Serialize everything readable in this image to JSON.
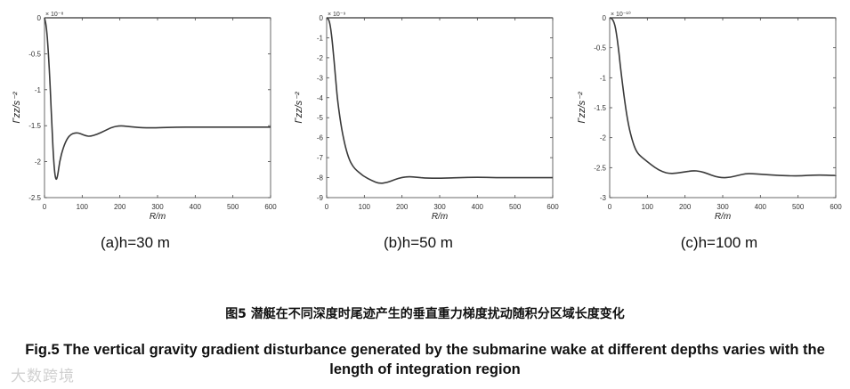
{
  "chart_data": [
    {
      "type": "line",
      "panel_label": "(a)h=30 m",
      "exponent": "× 10⁻⁸",
      "xlabel": "R/m",
      "ylabel": "Γzz/s⁻²",
      "xlim": [
        0,
        600
      ],
      "ylim": [
        -2.5,
        0
      ],
      "xticks": [
        "0",
        "100",
        "200",
        "300",
        "400",
        "500",
        "600"
      ],
      "yticks": [
        "0",
        "-0.5",
        "-1",
        "-1.5",
        "-2",
        "-2.5"
      ],
      "x": [
        0,
        5,
        10,
        15,
        20,
        25,
        30,
        35,
        40,
        50,
        60,
        70,
        80,
        90,
        100,
        110,
        120,
        140,
        160,
        180,
        200,
        220,
        240,
        260,
        280,
        300,
        350,
        400,
        450,
        500,
        550,
        600
      ],
      "y": [
        0,
        -0.12,
        -0.45,
        -0.95,
        -1.55,
        -2.05,
        -2.27,
        -2.2,
        -2.0,
        -1.8,
        -1.68,
        -1.62,
        -1.6,
        -1.6,
        -1.62,
        -1.64,
        -1.65,
        -1.62,
        -1.57,
        -1.52,
        -1.5,
        -1.51,
        -1.52,
        -1.53,
        -1.53,
        -1.53,
        -1.52,
        -1.52,
        -1.52,
        -1.52,
        -1.52,
        -1.52
      ]
    },
    {
      "type": "line",
      "panel_label": "(b)h=50 m",
      "exponent": "× 10⁻⁹",
      "xlabel": "R/m",
      "ylabel": "Γzz/s⁻²",
      "xlim": [
        0,
        600
      ],
      "ylim": [
        -9,
        0
      ],
      "xticks": [
        "0",
        "100",
        "200",
        "300",
        "400",
        "500",
        "600"
      ],
      "yticks": [
        "0",
        "-1",
        "-2",
        "-3",
        "-4",
        "-5",
        "-6",
        "-7",
        "-8",
        "-9"
      ],
      "x": [
        0,
        5,
        10,
        15,
        20,
        25,
        30,
        40,
        50,
        60,
        70,
        80,
        90,
        100,
        120,
        140,
        160,
        180,
        200,
        220,
        240,
        260,
        280,
        300,
        350,
        400,
        450,
        500,
        550,
        600
      ],
      "y": [
        0,
        -0.05,
        -0.4,
        -1.2,
        -2.2,
        -3.3,
        -4.3,
        -5.6,
        -6.5,
        -7.1,
        -7.45,
        -7.65,
        -7.8,
        -7.95,
        -8.15,
        -8.3,
        -8.25,
        -8.1,
        -7.98,
        -7.95,
        -7.98,
        -8.02,
        -8.03,
        -8.03,
        -8.0,
        -7.98,
        -8.0,
        -8.0,
        -8.0,
        -8.0
      ]
    },
    {
      "type": "line",
      "panel_label": "(c)h=100 m",
      "exponent": "× 10⁻¹⁰",
      "xlabel": "R/m",
      "ylabel": "Γzz/s⁻²",
      "xlim": [
        0,
        600
      ],
      "ylim": [
        -3,
        0
      ],
      "xticks": [
        "0",
        "100",
        "200",
        "300",
        "400",
        "500",
        "600"
      ],
      "yticks": [
        "0",
        "-0.5",
        "-1",
        "-1.5",
        "-2",
        "-2.5",
        "-3"
      ],
      "x": [
        0,
        5,
        10,
        15,
        20,
        25,
        30,
        40,
        50,
        60,
        70,
        80,
        100,
        120,
        140,
        160,
        180,
        200,
        220,
        240,
        260,
        280,
        300,
        320,
        340,
        360,
        380,
        400,
        450,
        500,
        550,
        600
      ],
      "y": [
        0,
        -0.01,
        -0.05,
        -0.15,
        -0.35,
        -0.6,
        -0.9,
        -1.4,
        -1.8,
        -2.05,
        -2.22,
        -2.3,
        -2.4,
        -2.5,
        -2.57,
        -2.6,
        -2.59,
        -2.57,
        -2.55,
        -2.56,
        -2.6,
        -2.65,
        -2.67,
        -2.66,
        -2.63,
        -2.6,
        -2.6,
        -2.61,
        -2.63,
        -2.64,
        -2.62,
        -2.63
      ]
    }
  ],
  "caption_cn": "图5 潜艇在不同深度时尾迹产生的垂直重力梯度扰动随积分区域长度变化",
  "caption_en": "Fig.5 The vertical gravity gradient disturbance generated by the submarine wake at different depths varies with the length of integration region",
  "watermark": "大数跨境"
}
